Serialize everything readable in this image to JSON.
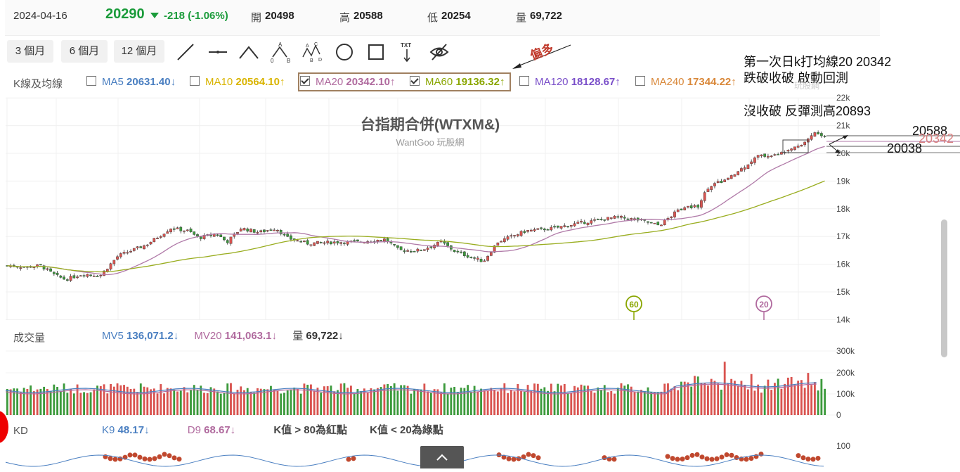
{
  "quote": {
    "date": "2024-04-16",
    "price": "20290",
    "change": "-218 (-1.06%)",
    "open_label": "開",
    "open_value": "20498",
    "high_label": "高",
    "high_value": "20588",
    "low_label": "低",
    "low_value": "20254",
    "volume_label": "量",
    "volume_value": "69,722",
    "down_color": "#1a9b3a"
  },
  "periods": [
    "3 個月",
    "6 個月",
    "12 個月"
  ],
  "tools": [
    "line-tool-icon",
    "horizontal-line-tool-icon",
    "angle-tool-icon",
    "zigzag-ab-tool-icon",
    "wave-abcd-tool-icon",
    "circle-tool-icon",
    "rectangle-tool-icon",
    "text-tool-icon",
    "hide-eye-icon"
  ],
  "kline_legend": {
    "label": "K線及均線",
    "items": [
      {
        "name": "MA5",
        "value": "20631.40",
        "arrow": "↓",
        "checked": false,
        "color": "#4a7fc1"
      },
      {
        "name": "MA10",
        "value": "20564.10",
        "arrow": "↑",
        "checked": false,
        "color": "#d9b400"
      },
      {
        "name": "MA20",
        "value": "20342.10",
        "arrow": "↑",
        "checked": true,
        "color": "#b06a9e"
      },
      {
        "name": "MA60",
        "value": "19136.32",
        "arrow": "↑",
        "checked": true,
        "color": "#8aa600"
      },
      {
        "name": "MA120",
        "value": "18128.67",
        "arrow": "↑",
        "checked": false,
        "color": "#7a4fc9"
      },
      {
        "name": "MA240",
        "value": "17344.22",
        "arrow": "↑",
        "checked": false,
        "color": "#d9883a"
      }
    ]
  },
  "chart_title": "台指期合併(WTXM&)",
  "chart_subtitle": "WantGoo 玩股網",
  "watermark": "玩股網",
  "annotation_bias": "偏多",
  "annotations": {
    "line1": "第一次日k打均線20 20342",
    "line2": "跌破收破 啟動回測",
    "line3": "沒收破 反彈測高20893",
    "level_high": "20588",
    "level_ma": "20342",
    "level_low": "20038"
  },
  "price_axis_ticks": [
    "22k",
    "21k",
    "20k",
    "19k",
    "18k",
    "17k",
    "16k",
    "15k",
    "14k"
  ],
  "ma_markers": [
    "60",
    "20"
  ],
  "volume_section": {
    "label": "成交量",
    "mv5_label": "MV5",
    "mv5_value": "136,071.2",
    "mv5_arrow": "↓",
    "mv20_label": "MV20",
    "mv20_value": "141,063.1",
    "mv20_arrow": "↓",
    "vol_label": "量",
    "vol_value": "69,722",
    "vol_arrow": "↓",
    "axis_ticks": [
      "300k",
      "200k",
      "100k",
      "0"
    ]
  },
  "kd_section": {
    "label": "KD",
    "k_label": "K9",
    "k_value": "48.17",
    "k_arrow": "↓",
    "d_label": "D9",
    "d_value": "68.67",
    "d_arrow": "↓",
    "note_red": "K值 > 80為紅點",
    "note_green": "K值 < 20為綠點",
    "axis_tick": "100"
  },
  "colors": {
    "up": "#d9534f",
    "down": "#3c9a3c",
    "ma20": "#b07aa8",
    "ma60": "#99ad1f"
  }
}
